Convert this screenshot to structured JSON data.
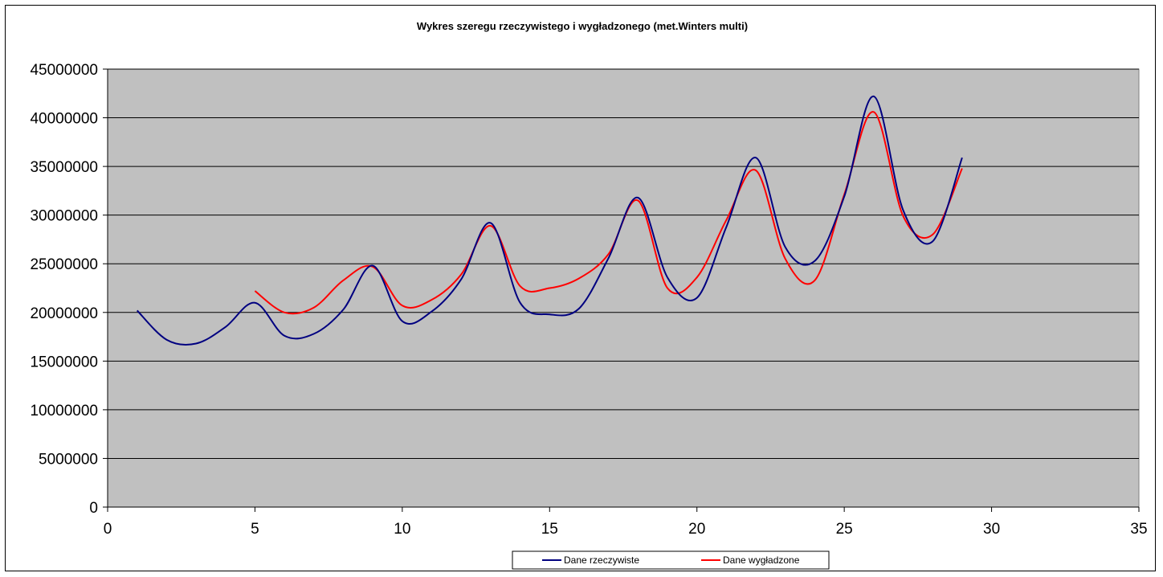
{
  "chart_data": {
    "type": "line",
    "title": "Wykres szeregu rzeczywistego i wygładzonego (met.Winters multi)",
    "xlabel": "",
    "ylabel": "",
    "xlim": [
      0,
      35
    ],
    "ylim": [
      0,
      45000000
    ],
    "x_ticks": [
      "0",
      "5",
      "10",
      "15",
      "20",
      "25",
      "30",
      "35"
    ],
    "y_ticks": [
      "0",
      "5000000",
      "10000000",
      "15000000",
      "20000000",
      "25000000",
      "30000000",
      "35000000",
      "40000000",
      "45000000"
    ],
    "grid": true,
    "legend_position": "bottom-center",
    "colors": {
      "plot_background": "#c0c0c0",
      "actual": "#000080",
      "smoothed": "#ff0000"
    },
    "series": [
      {
        "name": "Dane rzeczywiste",
        "x": [
          1,
          2,
          3,
          4,
          5,
          6,
          7,
          8,
          9,
          10,
          11,
          12,
          13,
          14,
          15,
          16,
          17,
          18,
          19,
          20,
          21,
          22,
          23,
          24,
          25,
          26,
          27,
          28,
          29
        ],
        "values": [
          20200000,
          17200000,
          16800000,
          18500000,
          21000000,
          17600000,
          17800000,
          20300000,
          24800000,
          19100000,
          20100000,
          23400000,
          29200000,
          21000000,
          19800000,
          20400000,
          25600000,
          31800000,
          23600000,
          21500000,
          28800000,
          35900000,
          26700000,
          25300000,
          31900000,
          42200000,
          30500000,
          27300000,
          35900000
        ]
      },
      {
        "name": "Dane wygładzone",
        "x": [
          5,
          6,
          7,
          8,
          9,
          10,
          11,
          12,
          13,
          14,
          15,
          16,
          17,
          18,
          19,
          20,
          21,
          22,
          23,
          24,
          25,
          26,
          27,
          28,
          29
        ],
        "values": [
          22200000,
          20000000,
          20500000,
          23300000,
          24700000,
          20700000,
          21300000,
          23900000,
          28900000,
          22700000,
          22500000,
          23500000,
          26000000,
          31500000,
          22500000,
          23600000,
          29500000,
          34600000,
          25500000,
          23300000,
          32100000,
          40600000,
          29900000,
          28000000,
          34800000
        ]
      }
    ]
  }
}
